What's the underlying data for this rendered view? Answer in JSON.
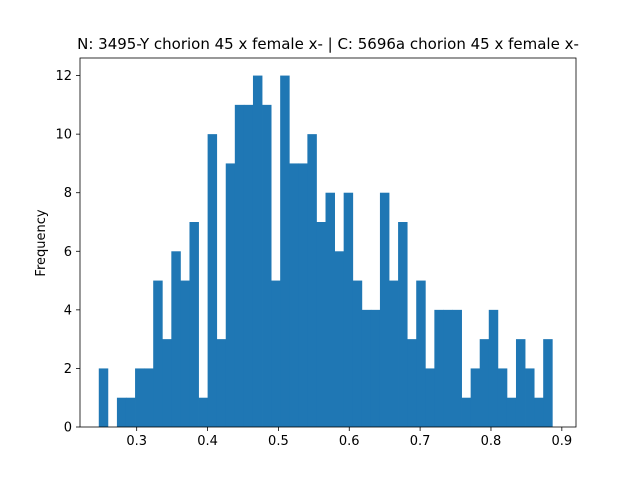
{
  "chart_data": {
    "type": "bar",
    "title": "N: 3495-Y chorion 45 x female x- | C: 5696a chorion 45 x female x-",
    "xlabel": "",
    "ylabel": "Frequency",
    "xlim": [
      0.22,
      0.92
    ],
    "ylim": [
      0,
      12.6
    ],
    "x_ticks": [
      0.3,
      0.4,
      0.5,
      0.6,
      0.7,
      0.8,
      0.9
    ],
    "x_tick_labels": [
      "0.3",
      "0.4",
      "0.5",
      "0.6",
      "0.7",
      "0.8",
      "0.9"
    ],
    "y_ticks": [
      0,
      2,
      4,
      6,
      8,
      10,
      12
    ],
    "y_tick_labels": [
      "0",
      "2",
      "4",
      "6",
      "8",
      "10",
      "12"
    ],
    "grid": false,
    "bar_color": "#1f77b4",
    "bin_width": 0.0128,
    "bin_starts": [
      0.2465,
      0.2593,
      0.2721,
      0.2849,
      0.2977,
      0.3105,
      0.3233,
      0.3361,
      0.3489,
      0.3617,
      0.3745,
      0.3873,
      0.4001,
      0.4129,
      0.4257,
      0.4385,
      0.4513,
      0.4641,
      0.4769,
      0.4897,
      0.5025,
      0.5153,
      0.5281,
      0.5409,
      0.5537,
      0.5665,
      0.5793,
      0.5921,
      0.6049,
      0.6177,
      0.6305,
      0.6433,
      0.6561,
      0.6689,
      0.6817,
      0.6945,
      0.7073,
      0.7201,
      0.7329,
      0.7457,
      0.7585,
      0.7713,
      0.7841,
      0.7969,
      0.8097,
      0.8225,
      0.8353,
      0.8481,
      0.8609,
      0.8737
    ],
    "values": [
      2,
      0,
      1,
      1,
      2,
      2,
      5,
      3,
      6,
      5,
      7,
      1,
      10,
      3,
      9,
      11,
      11,
      12,
      11,
      5,
      12,
      9,
      9,
      10,
      7,
      8,
      6,
      8,
      5,
      4,
      4,
      8,
      5,
      7,
      3,
      5,
      2,
      4,
      4,
      4,
      1,
      2,
      3,
      4,
      2,
      1,
      3,
      2,
      1,
      3
    ]
  }
}
